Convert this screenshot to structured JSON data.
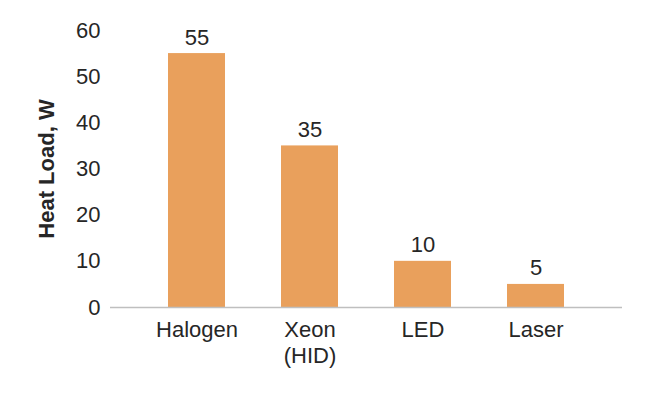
{
  "chart_data": {
    "type": "bar",
    "y_label": "Heat Load, W",
    "categories": [
      "Halogen",
      "Xeon\n(HID)",
      "LED",
      "Laser"
    ],
    "values": [
      55,
      35,
      10,
      5
    ],
    "color": "#e9a05c",
    "ylim": [
      0,
      60
    ],
    "yticks": [
      0,
      10,
      20,
      30,
      40,
      50,
      60
    ],
    "grid": false,
    "data_labels": true
  }
}
